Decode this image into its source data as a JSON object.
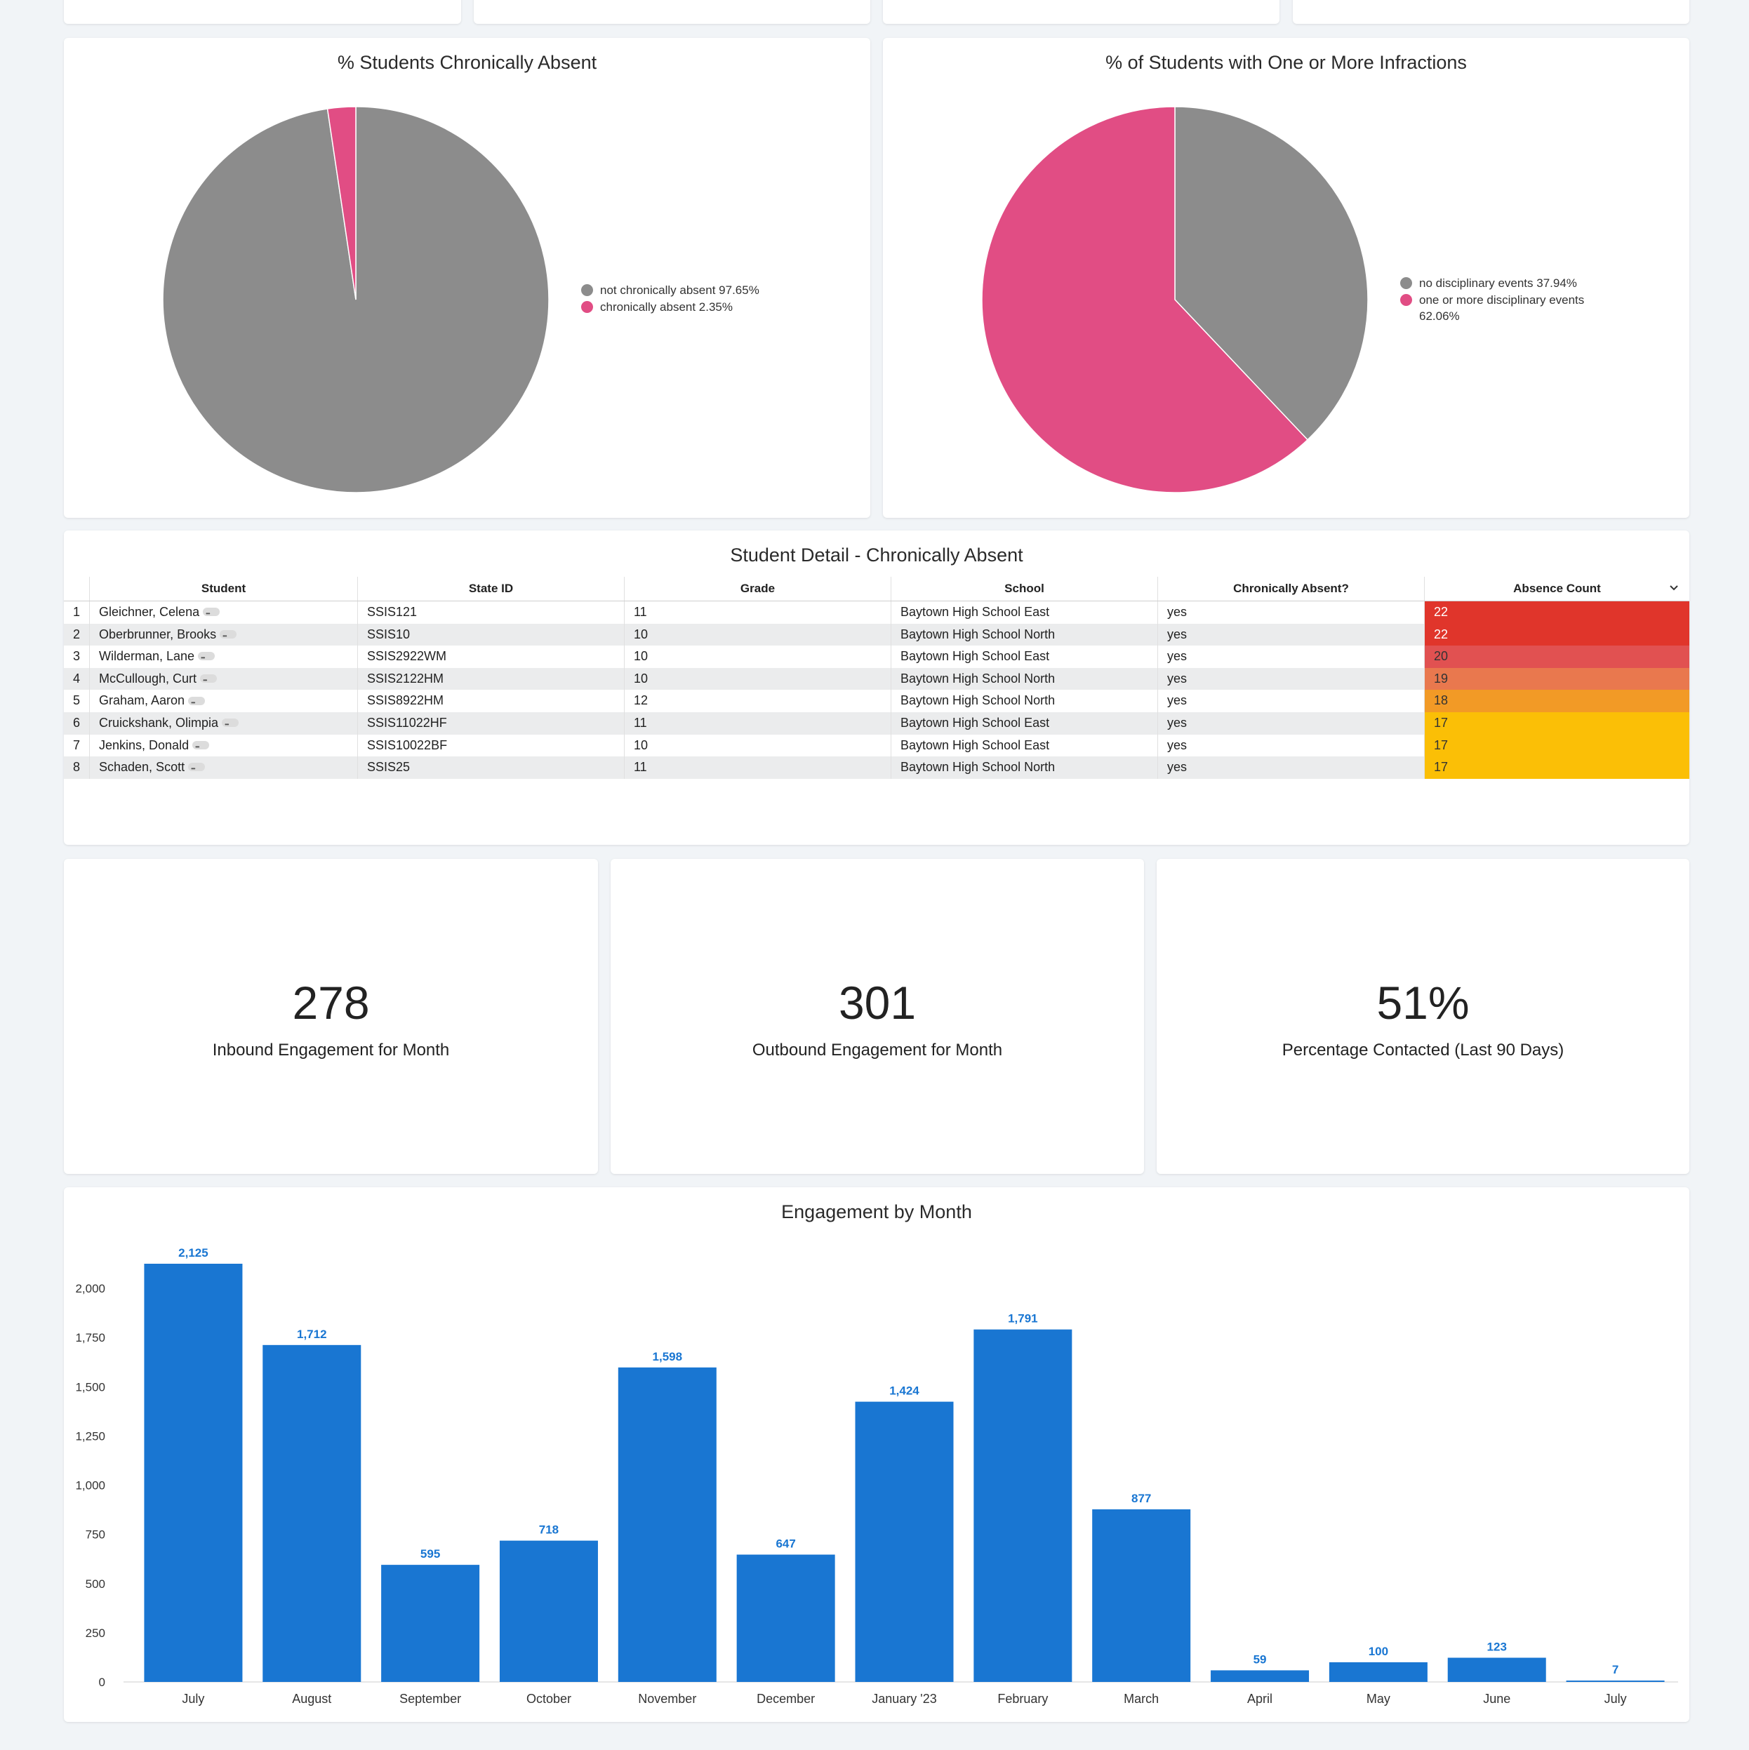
{
  "pie1": {
    "title": "% Students Chronically Absent",
    "legend": [
      {
        "label": "not chronically absent 97.65%",
        "color": "#8c8c8c"
      },
      {
        "label": "chronically absent 2.35%",
        "color": "#e14d84"
      }
    ]
  },
  "pie2": {
    "title": "% of Students with One or More Infractions",
    "legend": [
      {
        "label": "no disciplinary events 37.94%",
        "color": "#8c8c8c"
      },
      {
        "label": "one or more disciplinary events",
        "label2": "62.06%",
        "color": "#e14d84"
      }
    ]
  },
  "table": {
    "title": "Student Detail - Chronically Absent",
    "headers": [
      "Student",
      "State ID",
      "Grade",
      "School",
      "Chronically Absent?",
      "Absence Count"
    ],
    "rows": [
      {
        "num": "1",
        "student": "Gleichner, Celena",
        "state_id": "SSIS121",
        "grade": "11",
        "school": "Baytown High School East",
        "absent": "yes",
        "count": "22",
        "color": "#e0352b",
        "text_color": "#ffffff"
      },
      {
        "num": "2",
        "student": "Oberbrunner, Brooks",
        "state_id": "SSIS10",
        "grade": "10",
        "school": "Baytown High School North",
        "absent": "yes",
        "count": "22",
        "color": "#e0352b",
        "text_color": "#ffffff"
      },
      {
        "num": "3",
        "student": "Wilderman, Lane",
        "state_id": "SSIS2922WM",
        "grade": "10",
        "school": "Baytown High School East",
        "absent": "yes",
        "count": "20",
        "color": "#e15151",
        "text_color": "#333333"
      },
      {
        "num": "4",
        "student": "McCullough, Curt",
        "state_id": "SSIS2122HM",
        "grade": "10",
        "school": "Baytown High School North",
        "absent": "yes",
        "count": "19",
        "color": "#e9784e",
        "text_color": "#333333"
      },
      {
        "num": "5",
        "student": "Graham, Aaron",
        "state_id": "SSIS8922HM",
        "grade": "12",
        "school": "Baytown High School North",
        "absent": "yes",
        "count": "18",
        "color": "#f29a26",
        "text_color": "#333333"
      },
      {
        "num": "6",
        "student": "Cruickshank, Olimpia",
        "state_id": "SSIS11022HF",
        "grade": "11",
        "school": "Baytown High School East",
        "absent": "yes",
        "count": "17",
        "color": "#fbbf06",
        "text_color": "#333333"
      },
      {
        "num": "7",
        "student": "Jenkins, Donald",
        "state_id": "SSIS10022BF",
        "grade": "10",
        "school": "Baytown High School East",
        "absent": "yes",
        "count": "17",
        "color": "#fbbf06",
        "text_color": "#333333"
      },
      {
        "num": "8",
        "student": "Schaden, Scott",
        "state_id": "SSIS25",
        "grade": "11",
        "school": "Baytown High School North",
        "absent": "yes",
        "count": "17",
        "color": "#fbbf06",
        "text_color": "#333333"
      }
    ]
  },
  "kpis": [
    {
      "value": "278",
      "label": "Inbound Engagement for Month"
    },
    {
      "value": "301",
      "label": "Outbound Engagement for Month"
    },
    {
      "value": "51%",
      "label": "Percentage Contacted (Last 90 Days)"
    }
  ],
  "chart_data": [
    {
      "type": "pie",
      "title": "% Students Chronically Absent",
      "categories": [
        "not chronically absent",
        "chronically absent"
      ],
      "values": [
        97.65,
        2.35
      ],
      "colors": [
        "#8c8c8c",
        "#e14d84"
      ],
      "legend": "right"
    },
    {
      "type": "pie",
      "title": "% of Students with One or More Infractions",
      "categories": [
        "no disciplinary events",
        "one or more disciplinary events"
      ],
      "values": [
        37.94,
        62.06
      ],
      "colors": [
        "#8c8c8c",
        "#e14d84"
      ],
      "legend": "right"
    },
    {
      "type": "bar",
      "title": "Engagement by Month",
      "categories": [
        "July",
        "August",
        "September",
        "October",
        "November",
        "December",
        "January '23",
        "February",
        "March",
        "April",
        "May",
        "June",
        "July"
      ],
      "values": [
        2125,
        1712,
        595,
        718,
        1598,
        647,
        1424,
        1791,
        877,
        59,
        100,
        123,
        7
      ],
      "value_labels": [
        "2,125",
        "1,712",
        "595",
        "718",
        "1,598",
        "647",
        "1,424",
        "1,791",
        "877",
        "59",
        "100",
        "123",
        "7"
      ],
      "yticks": [
        "0",
        "250",
        "500",
        "750",
        "1,000",
        "1,250",
        "1,500",
        "1,750",
        "2,000"
      ],
      "ylim": [
        0,
        2125
      ],
      "color": "#1976d2",
      "grid": false
    }
  ],
  "bar": {
    "title": "Engagement by Month"
  }
}
